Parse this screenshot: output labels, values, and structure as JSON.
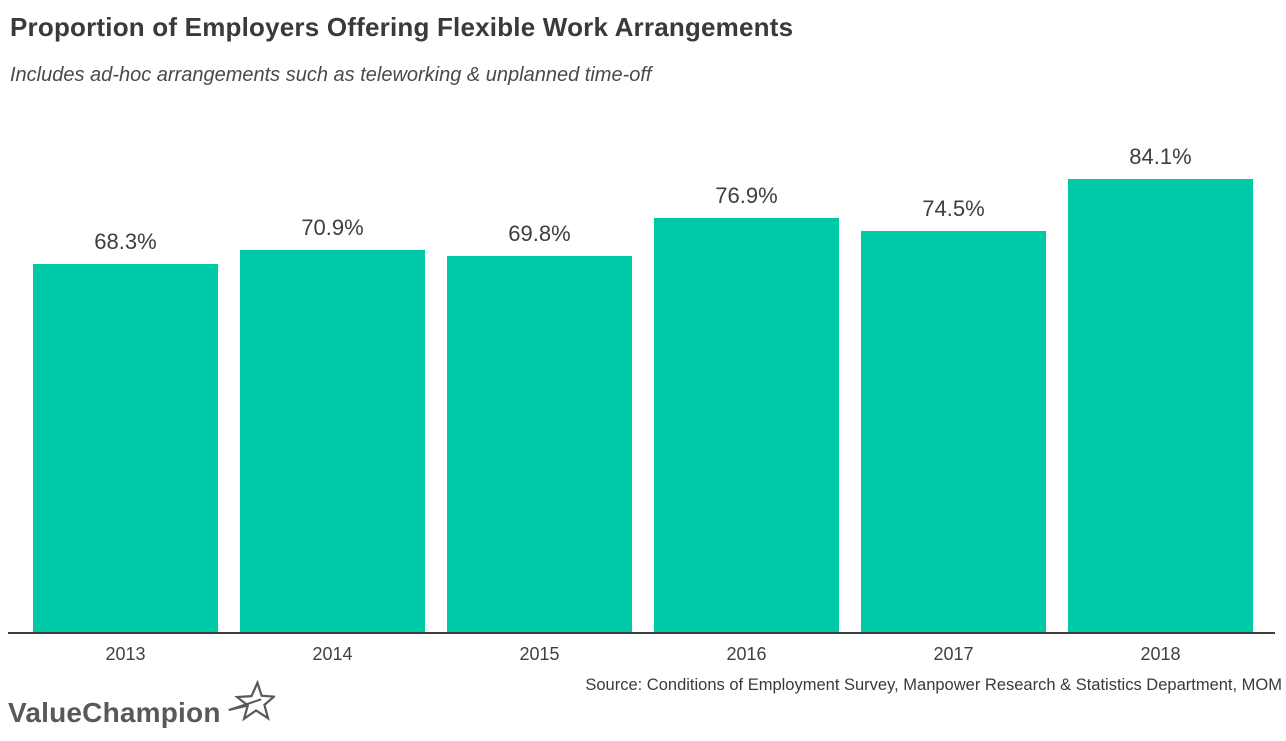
{
  "chart_data": {
    "type": "bar",
    "title": "Proportion of Employers Offering Flexible Work Arrangements",
    "subtitle": "Includes ad-hoc arrangements such as teleworking & unplanned time-off",
    "categories": [
      "2013",
      "2014",
      "2015",
      "2016",
      "2017",
      "2018"
    ],
    "values": [
      68.3,
      70.9,
      69.8,
      76.9,
      74.5,
      84.1
    ],
    "value_labels": [
      "68.3%",
      "70.9%",
      "69.8%",
      "76.9%",
      "74.5%",
      "84.1%"
    ],
    "ylabel": "",
    "xlabel": "",
    "ylim": [
      0,
      100
    ],
    "grid": false,
    "legend": false,
    "bar_color": "#00C9A7",
    "axis_color": "#3F3F41",
    "source": "Source: Conditions of Employment Survey, Manpower Research & Statistics Department, MOM"
  },
  "branding": {
    "logo_text": "ValueChampion",
    "logo_icon": "star-icon",
    "logo_color": "#58595B"
  }
}
